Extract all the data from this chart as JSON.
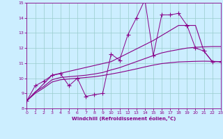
{
  "xlabel": "Windchill (Refroidissement éolien,°C)",
  "bg_color": "#cceeff",
  "line_color": "#880088",
  "grid_color": "#99cccc",
  "xmin": 0,
  "xmax": 23,
  "ymin": 8,
  "ymax": 15,
  "xticks": [
    0,
    1,
    2,
    3,
    4,
    5,
    6,
    7,
    8,
    9,
    10,
    11,
    12,
    13,
    14,
    15,
    16,
    17,
    18,
    19,
    20,
    21,
    22,
    23
  ],
  "yticks": [
    8,
    9,
    10,
    11,
    12,
    13,
    14,
    15
  ],
  "line1_x": [
    0,
    1,
    2,
    3,
    4,
    5,
    6,
    7,
    8,
    9,
    10,
    11,
    12,
    13,
    14,
    15,
    16,
    17,
    18,
    19,
    20,
    21,
    22,
    23
  ],
  "line1_y": [
    8.5,
    9.5,
    9.8,
    10.2,
    10.3,
    9.5,
    10.0,
    8.8,
    8.9,
    9.0,
    11.6,
    11.2,
    12.9,
    14.0,
    15.2,
    11.5,
    14.2,
    14.2,
    14.3,
    13.5,
    12.0,
    11.8,
    11.1,
    11.1
  ],
  "line2_x": [
    0,
    3,
    10,
    15,
    18,
    20,
    21,
    22,
    23
  ],
  "line2_y": [
    8.5,
    10.2,
    11.1,
    12.5,
    13.5,
    13.5,
    11.8,
    11.1,
    11.1
  ],
  "line3_x": [
    0,
    1,
    2,
    3,
    4,
    5,
    6,
    7,
    8,
    9,
    10,
    11,
    12,
    13,
    14,
    15,
    16,
    17,
    18,
    19,
    20,
    21,
    22,
    23
  ],
  "line3_y": [
    8.5,
    9.0,
    9.35,
    9.75,
    9.9,
    9.95,
    10.0,
    10.05,
    10.1,
    10.18,
    10.28,
    10.38,
    10.5,
    10.62,
    10.75,
    10.87,
    10.97,
    11.03,
    11.08,
    11.1,
    11.12,
    11.13,
    11.12,
    11.1
  ],
  "line4_x": [
    0,
    1,
    2,
    3,
    4,
    5,
    6,
    7,
    8,
    9,
    10,
    11,
    12,
    13,
    14,
    15,
    16,
    17,
    18,
    19,
    20,
    21,
    22,
    23
  ],
  "line4_y": [
    8.5,
    9.1,
    9.45,
    9.9,
    10.05,
    10.1,
    10.15,
    10.2,
    10.28,
    10.38,
    10.55,
    10.7,
    10.9,
    11.1,
    11.3,
    11.5,
    11.68,
    11.8,
    11.9,
    12.0,
    12.05,
    12.08,
    12.1,
    12.1
  ]
}
